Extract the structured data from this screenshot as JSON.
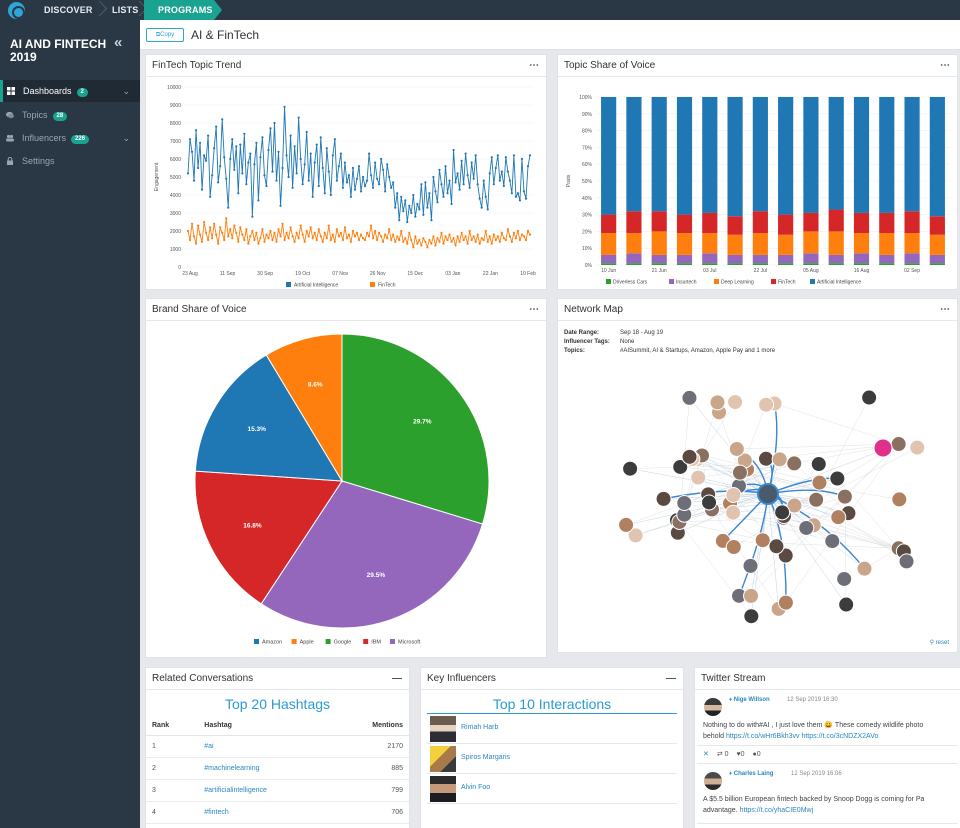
{
  "nav": {
    "discover": "DISCOVER",
    "lists": "LISTS",
    "programs": "PROGRAMS"
  },
  "sidebar": {
    "title": "AI AND FINTECH 2019",
    "collapse_icon": "«",
    "items": [
      {
        "label": "Dashboards",
        "badge": "2",
        "icon": "dashboard-icon"
      },
      {
        "label": "Topics",
        "badge": "28",
        "icon": "topics-icon"
      },
      {
        "label": "Influencers",
        "badge": "226",
        "icon": "influencers-icon"
      },
      {
        "label": "Settings",
        "badge": "",
        "icon": "lock-icon"
      }
    ]
  },
  "header": {
    "copy_label": "Copy",
    "title": "AI & FinTech"
  },
  "colors": {
    "accent": "#1aa391",
    "sidebar": "#2a3744",
    "blue": "#1f77b4",
    "orange": "#ff7f0e",
    "green": "#2ca02c",
    "red": "#d62728",
    "purple": "#9467bd",
    "link": "#2b87c0"
  },
  "panels": {
    "trend": {
      "title": "FinTech Topic Trend"
    },
    "sov": {
      "title": "Topic Share of Voice"
    },
    "brand": {
      "title": "Brand Share of Voice"
    },
    "network": {
      "title": "Network Map",
      "date_range_label": "Date Range:",
      "date_range": "Sep 18 - Aug 19",
      "influencer_tags_label": "Influencer Tags:",
      "influencer_tags": "None",
      "topics_label": "Topics:",
      "topics": "#AISummit, AI & Startups, Amazon, Apple Pay and 1 more",
      "reset": "reset"
    },
    "conversations": {
      "title": "Related Conversations",
      "subtitle": "Top 20 Hashtags"
    },
    "influencers": {
      "title": "Key Influencers",
      "subtitle": "Top 10 Interactions"
    },
    "twitter": {
      "title": "Twitter Stream"
    }
  },
  "hashtags": {
    "headers": {
      "rank": "Rank",
      "hashtag": "Hashtag",
      "mentions": "Mentions"
    },
    "rows": [
      {
        "rank": "1",
        "tag": "#ai",
        "mentions": "2170"
      },
      {
        "rank": "2",
        "tag": "#machinelearning",
        "mentions": "885"
      },
      {
        "rank": "3",
        "tag": "#artificialintelligence",
        "mentions": "799"
      },
      {
        "rank": "4",
        "tag": "#fintech",
        "mentions": "706"
      }
    ]
  },
  "influencers": [
    {
      "name": "Rimah Harb"
    },
    {
      "name": "Spiros Margaris"
    },
    {
      "name": "Alvin Foo"
    }
  ],
  "tweets": [
    {
      "user": "Nige Willson",
      "date": "12 Sep 2019 16:30",
      "text": "Nothing to do with#AI , I just love them 😀 These comedy wildlife photo",
      "text2": "behold",
      "link1": "https://t.co/wHr6Bkh3vv",
      "link2": "https://t.co/3cNDZX2AVo",
      "retweets": "0",
      "likes": "0",
      "replies": "0"
    },
    {
      "user": "Charles Laing",
      "date": "12 Sep 2019 16:06",
      "text": "A $5.5 billion European fintech backed by Snoop Dogg is coming for Pa",
      "text2": "advantage.",
      "link1": "https://t.co/yhaCIE0Mwj",
      "link2": ""
    }
  ],
  "chart_data": [
    {
      "type": "line",
      "ylim": [
        0,
        10000
      ],
      "yticks": [
        "0",
        "1000",
        "2000",
        "3000",
        "4000",
        "5000",
        "6000",
        "7000",
        "8000",
        "9000",
        "10000"
      ],
      "ylabel": "Engagement",
      "x_labels": [
        "23 Aug",
        "11 Sep",
        "30 Sep",
        "19 Oct",
        "07 Nov",
        "26 Nov",
        "15 Dec",
        "03 Jan",
        "22 Jan",
        "10 Feb"
      ],
      "series": [
        {
          "name": "Artificial Intelligence",
          "color": "#1f77b4",
          "values": [
            5200,
            7100,
            6400,
            4800,
            7600,
            5500,
            6900,
            4300,
            6200,
            5900,
            7300,
            3900,
            5100,
            6600,
            7800,
            4700,
            5600,
            8200,
            6100,
            4900,
            3300,
            6000,
            7100,
            5400,
            6700,
            4100,
            6800,
            5200,
            7400,
            4600,
            5800,
            6300,
            2800,
            5700,
            6900,
            3700,
            6100,
            7200,
            5100,
            4500,
            6500,
            7700,
            5300,
            8000,
            4800,
            6400,
            3400,
            5500,
            8900,
            6200,
            5000,
            7300,
            4400,
            6700,
            5200,
            8300,
            6000,
            4600,
            5700,
            7500,
            4800,
            6300,
            3900,
            5800,
            6800,
            4500,
            7200,
            5500,
            4100,
            6600,
            5300,
            4000,
            6200,
            7100,
            4800,
            5600,
            6300,
            4400,
            5800,
            4700,
            5100,
            3900,
            5500,
            4300,
            4900,
            5600,
            4200,
            5000,
            4500,
            4800,
            6300,
            5100,
            4400,
            5800,
            4900,
            4600,
            6000,
            5400,
            4200,
            5700,
            5000,
            4400,
            4700,
            3300,
            4100,
            2600,
            3900,
            3100,
            3700,
            2500,
            3400,
            3000,
            4000,
            2800,
            3500,
            3200,
            4600,
            2900,
            4700,
            3300,
            4100,
            2600,
            5000,
            4200,
            3600,
            5400,
            4600,
            3900,
            5600,
            4100,
            4800,
            3500,
            6500,
            4700,
            5200,
            4300,
            5900,
            4600,
            6300,
            5100,
            4400,
            5800,
            4900,
            6200,
            4600,
            3800,
            3300,
            4800,
            3900,
            3200,
            5200,
            6100,
            4600,
            5500,
            6200,
            4800,
            5300,
            4500,
            6100,
            5300,
            4800,
            4100,
            6200,
            3900,
            4100,
            3700,
            6000,
            4200,
            3800,
            5600,
            6200
          ]
        },
        {
          "name": "FinTech",
          "color": "#ff7f0e",
          "values": [
            2000,
            1500,
            2400,
            1700,
            1300,
            2300,
            1800,
            1400,
            2500,
            1900,
            1500,
            2200,
            1600,
            2400,
            1800,
            1300,
            2200,
            1900,
            1500,
            2700,
            1700,
            2100,
            1600,
            2300,
            1900,
            1400,
            2200,
            1800,
            1500,
            2100,
            1300,
            1700,
            2000,
            1500,
            1900,
            1300,
            1600,
            2100,
            1400,
            1800,
            1600,
            2000,
            1500,
            1900,
            1400,
            2100,
            1700,
            2400,
            1500,
            1900,
            1600,
            2200,
            1700,
            1400,
            1900,
            1600,
            2300,
            1800,
            1400,
            2000,
            1700,
            2200,
            1600,
            1900,
            1500,
            2100,
            1700,
            1400,
            1900,
            1600,
            2300,
            1500,
            1800,
            1400,
            2100,
            1700,
            1900,
            1500,
            2200,
            1600,
            1800,
            1400,
            2000,
            1700,
            1900,
            1500,
            1800,
            1600,
            1500,
            1900,
            1700,
            2300,
            1600,
            2000,
            1500,
            1900,
            1700,
            1400,
            1800,
            1600,
            2100,
            1500,
            1800,
            1400,
            1700,
            1500,
            2000,
            1400,
            1600,
            1300,
            1900,
            1500,
            1100,
            1700,
            1300,
            1500,
            1200,
            1600,
            1400,
            1100,
            1500,
            1300,
            1700,
            1200,
            1600,
            1400,
            1900,
            1300,
            1700,
            1500,
            1800,
            1400,
            1600,
            1200,
            1700,
            1400,
            1900,
            1500,
            1700,
            1300,
            2000,
            1500,
            1700,
            1400,
            1800,
            1300,
            1600,
            1500,
            2000,
            1400,
            1700,
            1300,
            1800,
            1500,
            1700,
            1400,
            1900,
            1600,
            1500,
            2100,
            1700,
            1400,
            1900,
            1600,
            2000,
            1500,
            1800,
            1700,
            1500,
            2000,
            1800
          ]
        }
      ]
    },
    {
      "type": "bar",
      "stacked": true,
      "ylabel": "Posts",
      "yticks": [
        "0%",
        "10%",
        "20%",
        "30%",
        "40%",
        "50%",
        "60%",
        "70%",
        "80%",
        "90%",
        "100%"
      ],
      "x_labels": [
        "10 Jun",
        "21 Jun",
        "03 Jul",
        "22 Jul",
        "05 Aug",
        "16 Aug",
        "02 Sep"
      ],
      "categories_count": 14,
      "series": [
        {
          "name": "Driverless Cars",
          "color": "#2ca02c",
          "values": [
            1,
            1,
            1,
            1,
            1,
            1,
            1,
            1,
            1,
            1,
            1,
            1,
            1,
            1
          ]
        },
        {
          "name": "Insurtech",
          "color": "#9467bd",
          "values": [
            5,
            6,
            5,
            5,
            6,
            5,
            5,
            5,
            6,
            5,
            6,
            5,
            6,
            5
          ]
        },
        {
          "name": "Deep Learning",
          "color": "#ff7f0e",
          "values": [
            13,
            12,
            14,
            13,
            12,
            12,
            13,
            12,
            13,
            14,
            12,
            13,
            12,
            12
          ]
        },
        {
          "name": "FinTech",
          "color": "#d62728",
          "values": [
            11,
            13,
            12,
            11,
            12,
            11,
            13,
            12,
            11,
            13,
            12,
            12,
            13,
            11
          ]
        },
        {
          "name": "Artificial Intelligence",
          "color": "#1f77b4",
          "values": [
            70,
            68,
            68,
            70,
            69,
            71,
            68,
            70,
            69,
            67,
            69,
            69,
            68,
            71
          ]
        }
      ]
    },
    {
      "type": "pie",
      "slices": [
        {
          "name": "Microsoft",
          "value": 29.7,
          "label": "29.7%",
          "color": "#2ca02c"
        },
        {
          "name": "IBM",
          "value": 29.5,
          "label": "29.5%",
          "color": "#9467bd"
        },
        {
          "name": "Google",
          "value": 16.8,
          "label": "16.8%",
          "color": "#d62728"
        },
        {
          "name": "Apple",
          "value": 15.3,
          "label": "15.3%",
          "color": "#1f77b4"
        },
        {
          "name": "Amazon",
          "value": 8.6,
          "label": "8.6%",
          "color": "#ff7f0e"
        }
      ],
      "legend": [
        {
          "name": "Amazon",
          "color": "#1f77b4"
        },
        {
          "name": "Apple",
          "color": "#ff7f0e"
        },
        {
          "name": "Google",
          "color": "#2ca02c"
        },
        {
          "name": "IBM",
          "color": "#d62728"
        },
        {
          "name": "Microsoft",
          "color": "#9467bd"
        }
      ],
      "legend_placement": "bottom"
    }
  ]
}
